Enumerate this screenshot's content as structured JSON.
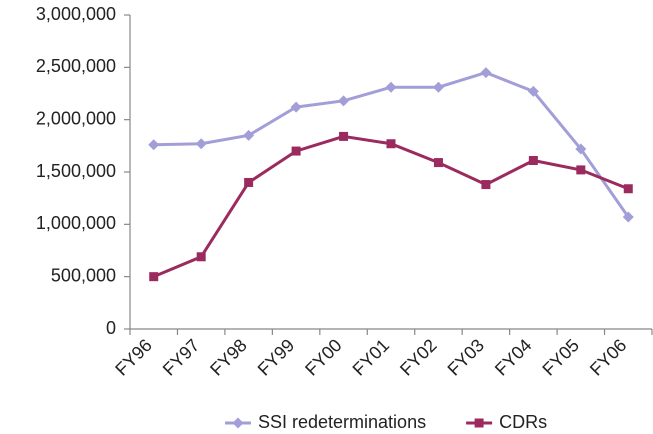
{
  "chart_data": {
    "type": "line",
    "categories": [
      "FY96",
      "FY97",
      "FY98",
      "FY99",
      "FY00",
      "FY01",
      "FY02",
      "FY03",
      "FY04",
      "FY05",
      "FY06"
    ],
    "series": [
      {
        "name": "SSI redeterminations",
        "color": "#a29fd8",
        "marker": "diamond",
        "values": [
          1760000,
          1770000,
          1850000,
          2120000,
          2180000,
          2310000,
          2310000,
          2450000,
          2270000,
          1720000,
          1070000
        ]
      },
      {
        "name": "CDRs",
        "color": "#9b2a5f",
        "marker": "square",
        "values": [
          500000,
          690000,
          1400000,
          1700000,
          1840000,
          1770000,
          1590000,
          1380000,
          1610000,
          1520000,
          1340000
        ]
      }
    ],
    "ylim": [
      0,
      3000000
    ],
    "yticks": [
      0,
      {
        "value": 500000,
        "label": "500,000"
      },
      {
        "value": 1000000,
        "label": "1,000,000"
      },
      {
        "value": 1500000,
        "label": "1,500,000"
      },
      {
        "value": 2000000,
        "label": "2,000,000"
      },
      {
        "value": 2500000,
        "label": "2,500,000"
      },
      {
        "value": 3000000,
        "label": "3,000,000"
      }
    ],
    "grid": false,
    "legend": "bottom"
  }
}
